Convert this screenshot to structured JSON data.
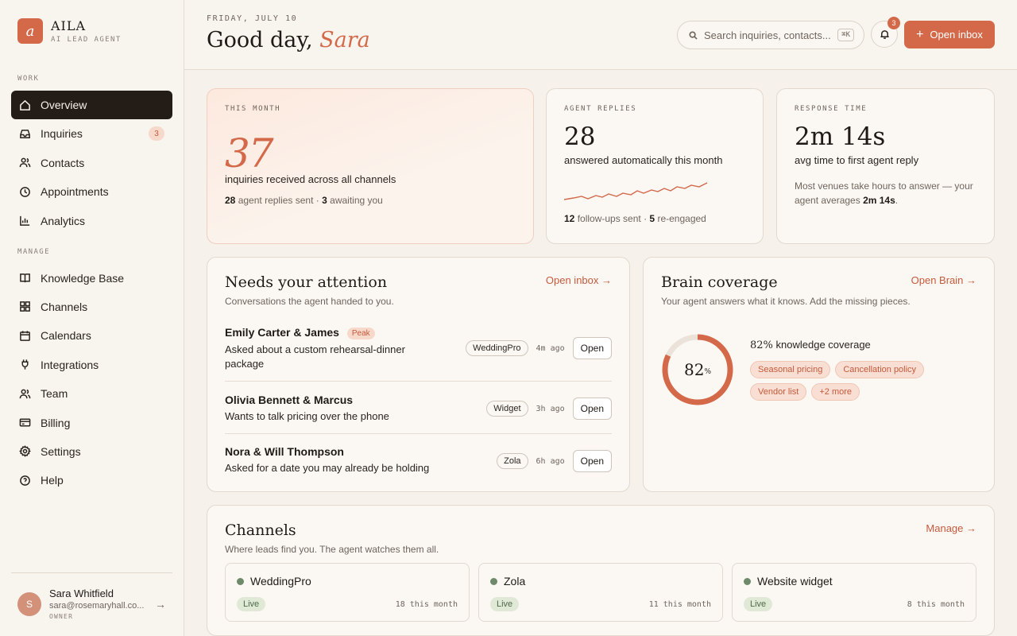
{
  "brand": {
    "logo_letter": "a",
    "name": "AILA",
    "subtitle": "AI LEAD AGENT"
  },
  "sidebar": {
    "work_label": "WORK",
    "manage_label": "MANAGE",
    "work_items": [
      {
        "label": "Overview",
        "icon": "home-icon",
        "active": true
      },
      {
        "label": "Inquiries",
        "icon": "inbox-icon",
        "badge": "3"
      },
      {
        "label": "Contacts",
        "icon": "users-icon"
      },
      {
        "label": "Appointments",
        "icon": "clock-icon"
      },
      {
        "label": "Analytics",
        "icon": "chart-icon"
      }
    ],
    "manage_items": [
      {
        "label": "Knowledge Base",
        "icon": "book-icon"
      },
      {
        "label": "Channels",
        "icon": "grid-icon"
      },
      {
        "label": "Calendars",
        "icon": "calendar-icon"
      },
      {
        "label": "Integrations",
        "icon": "plug-icon"
      },
      {
        "label": "Team",
        "icon": "team-icon"
      },
      {
        "label": "Billing",
        "icon": "card-icon"
      },
      {
        "label": "Settings",
        "icon": "gear-icon"
      },
      {
        "label": "Help",
        "icon": "help-icon"
      }
    ],
    "user": {
      "initial": "S",
      "name": "Sara Whitfield",
      "email": "sara@rosemaryhall.co...",
      "role": "OWNER"
    }
  },
  "header": {
    "date": "FRIDAY, JULY 10",
    "greeting": "Good day,",
    "name": "Sara",
    "search_placeholder": "Search inquiries, contacts...",
    "search_shortcut": "⌘K",
    "notif_count": "3",
    "open_inbox_label": "Open inbox"
  },
  "stats": {
    "month": {
      "label": "THIS MONTH",
      "value": "37",
      "desc": "inquiries received across all channels",
      "meta_a_num": "28",
      "meta_a": "agent replies sent",
      "meta_b_num": "3",
      "meta_b": "awaiting you"
    },
    "replies": {
      "label": "AGENT REPLIES",
      "value": "28",
      "desc": "answered automatically this month",
      "meta_a_num": "12",
      "meta_a": "follow-ups sent",
      "meta_b_num": "5",
      "meta_b": "re-engaged"
    },
    "response": {
      "label": "RESPONSE TIME",
      "value": "2m 14s",
      "desc": "avg time to first agent reply",
      "note_a": "Most venues take hours to answer — your agent averages",
      "note_b": "2m 14s",
      "note_c": "."
    }
  },
  "attention": {
    "title": "Needs your attention",
    "subtitle": "Conversations the agent handed to you.",
    "link": "Open inbox →",
    "rows": [
      {
        "name": "Emily Carter & James",
        "tag": "Peak",
        "desc": "Asked about a custom rehearsal-dinner package",
        "source": "WeddingPro",
        "ago": "4m ago",
        "action": "Open"
      },
      {
        "name": "Olivia Bennett & Marcus",
        "desc": "Wants to talk pricing over the phone",
        "source": "Widget",
        "ago": "3h ago",
        "action": "Open"
      },
      {
        "name": "Nora & Will Thompson",
        "desc": "Asked for a date you may already be holding",
        "source": "Zola",
        "ago": "6h ago",
        "action": "Open"
      }
    ]
  },
  "brain": {
    "title": "Brain coverage",
    "subtitle": "Your agent answers what it knows. Add the missing pieces.",
    "link": "Open Brain →",
    "coverage_value": 82,
    "coverage_num": "82",
    "coverage_pct": "%",
    "coverage_label": "82%",
    "coverage_text": "knowledge coverage",
    "tags": [
      "Seasonal pricing",
      "Cancellation policy",
      "Vendor list",
      "+2 more"
    ]
  },
  "channels": {
    "title": "Channels",
    "subtitle": "Where leads find you. The agent watches them all.",
    "link": "Manage →",
    "items": [
      {
        "name": "WeddingPro",
        "status": "Live",
        "count": "18 this month"
      },
      {
        "name": "Zola",
        "status": "Live",
        "count": "11 this month"
      },
      {
        "name": "Website widget",
        "status": "Live",
        "count": "8 this month"
      }
    ]
  },
  "colors": {
    "accent": "#d4694a",
    "dark": "#231c17",
    "live": "#6e8a6a"
  }
}
